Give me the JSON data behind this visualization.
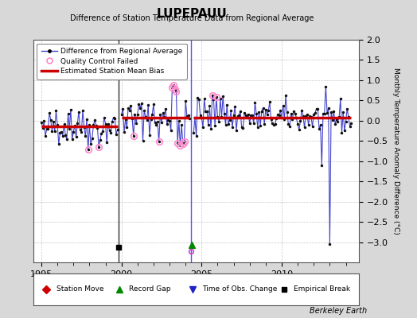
{
  "title": "LUPEPAUU",
  "subtitle": "Difference of Station Temperature Data from Regional Average",
  "ylabel": "Monthly Temperature Anomaly Difference (°C)",
  "credit": "Berkeley Earth",
  "xlim": [
    1994.5,
    2014.8
  ],
  "ylim": [
    -3.5,
    2.0
  ],
  "yticks": [
    -3.0,
    -2.5,
    -2.0,
    -1.5,
    -1.0,
    -0.5,
    0.0,
    0.5,
    1.0,
    1.5,
    2.0
  ],
  "xticks": [
    1995,
    2000,
    2005,
    2010
  ],
  "background_color": "#d8d8d8",
  "plot_bg_color": "#ffffff",
  "segment1_bias": -0.15,
  "segment2_bias": 0.08,
  "segment3_bias": 0.08,
  "empirical_break_year": 1999.83,
  "obs_change_year": 2004.33,
  "line_color": "#4444cc",
  "bias_color": "#cc0000",
  "qc_color": "#ff88cc",
  "marker_color": "#111111",
  "grid_color": "#c8c8c8"
}
